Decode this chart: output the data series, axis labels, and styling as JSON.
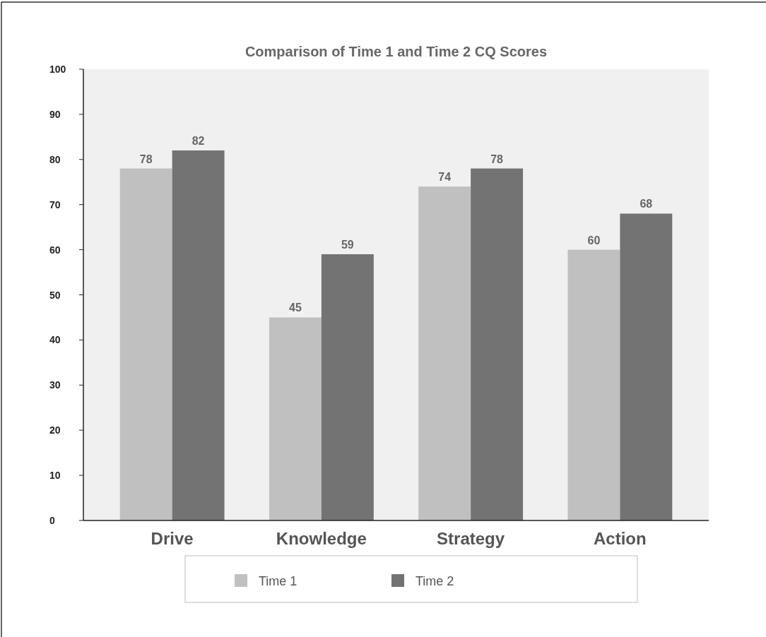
{
  "chart_data": {
    "type": "bar",
    "title": "Comparison of Time 1 and Time 2 CQ Scores",
    "categories": [
      "Drive",
      "Knowledge",
      "Strategy",
      "Action"
    ],
    "series": [
      {
        "name": "Time 1",
        "color": "#c0c0c0",
        "values": [
          78,
          45,
          74,
          60
        ]
      },
      {
        "name": "Time 2",
        "color": "#737373",
        "values": [
          82,
          59,
          78,
          68
        ]
      }
    ],
    "ylim": [
      0,
      100
    ],
    "yticks": [
      0,
      10,
      20,
      30,
      40,
      50,
      60,
      70,
      80,
      90,
      100
    ],
    "data_labels": true,
    "legend": "bottom",
    "grid": false
  }
}
